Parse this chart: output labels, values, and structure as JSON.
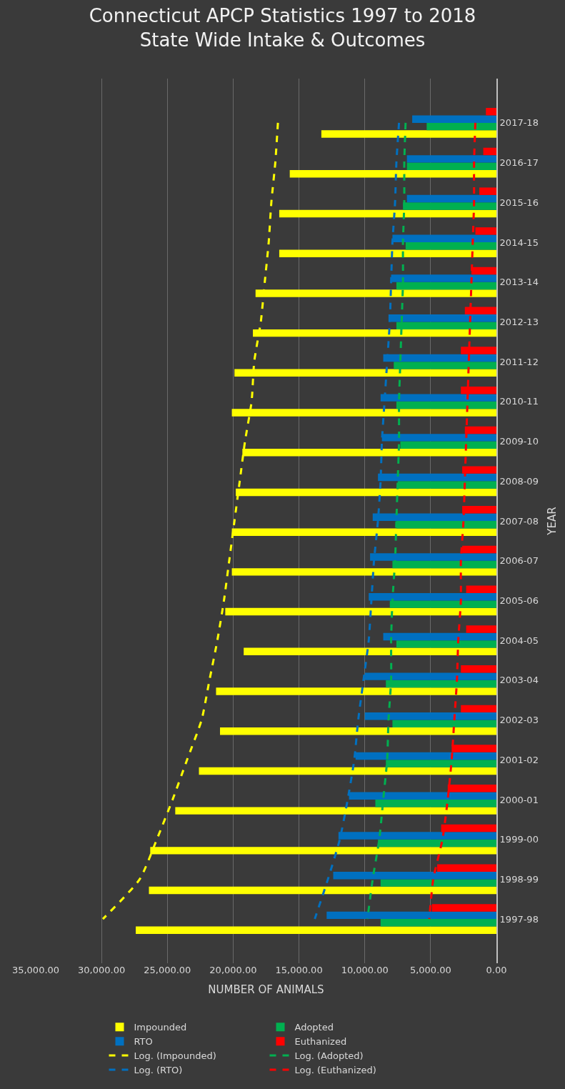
{
  "chart_data": {
    "type": "bar",
    "orientation": "horizontal",
    "title": "Connecticut APCP Statistics 1997 to 2018\nState Wide Intake & Outcomes",
    "xlabel": "NUMBER OF ANIMALS",
    "ylabel": "YEAR",
    "categories": [
      "2017-18",
      "2016-17",
      "2015-16",
      "2014-15",
      "2013-14",
      "2012-13",
      "2011-12",
      "2010-11",
      "2009-10",
      "2008-09",
      "2007-08",
      "2006-07",
      "2005-06",
      "2004-05",
      "2003-04",
      "2002-03",
      "2001-02",
      "2000-01",
      "1999-00",
      "1998-99",
      "1997-98"
    ],
    "series": [
      {
        "name": "Impounded",
        "color": "#ffff00",
        "values": [
          13300,
          15700,
          16500,
          16500,
          18300,
          18500,
          19900,
          20100,
          19300,
          19800,
          20100,
          20100,
          20600,
          19200,
          21300,
          21000,
          22600,
          24400,
          26300,
          26400,
          27400
        ]
      },
      {
        "name": "Adopted",
        "color": "#00b050",
        "values": [
          5300,
          6800,
          7100,
          6900,
          7600,
          7600,
          7800,
          7600,
          7300,
          7500,
          7600,
          7900,
          8100,
          7600,
          8400,
          7900,
          8400,
          9200,
          9000,
          8800,
          8800
        ]
      },
      {
        "name": "RTO",
        "color": "#0070c0",
        "values": [
          6400,
          6800,
          6800,
          7900,
          8000,
          8200,
          8600,
          8800,
          8700,
          9000,
          9400,
          9600,
          9700,
          8600,
          10000,
          10000,
          10700,
          11200,
          12000,
          12400,
          12900
        ]
      },
      {
        "name": "Euthanized",
        "color": "#ff0000",
        "values": [
          800,
          1000,
          1300,
          1600,
          1900,
          2400,
          2700,
          2700,
          2400,
          2600,
          2600,
          2600,
          2300,
          2300,
          2700,
          2700,
          3400,
          3700,
          4200,
          4500,
          4900
        ]
      },
      {
        "name": "Log. (Impounded)",
        "type": "line",
        "line_style": "dashed",
        "color": "#ffff00",
        "values": [
          16600,
          16800,
          17100,
          17300,
          17600,
          17900,
          18400,
          18600,
          19100,
          19500,
          19900,
          20300,
          20700,
          21200,
          21800,
          22400,
          23500,
          24600,
          25800,
          27100,
          29900
        ]
      },
      {
        "name": "Log. (Adopted)",
        "type": "line",
        "line_style": "dashed",
        "color": "#00b050",
        "values": [
          6900,
          7000,
          7000,
          7100,
          7100,
          7200,
          7300,
          7400,
          7400,
          7500,
          7600,
          7700,
          7900,
          8000,
          8000,
          8200,
          8300,
          8600,
          8900,
          9400,
          9800
        ]
      },
      {
        "name": "Log. (RTO)",
        "type": "line",
        "line_style": "dashed",
        "color": "#0070c0",
        "values": [
          7400,
          7600,
          7700,
          7900,
          8000,
          8100,
          8300,
          8500,
          8700,
          8800,
          9000,
          9300,
          9500,
          9700,
          10100,
          10500,
          10800,
          11300,
          11900,
          12800,
          13800
        ]
      },
      {
        "name": "Log. (Euthanized)",
        "type": "line",
        "line_style": "dashed",
        "color": "#ff0000",
        "values": [
          1600,
          1700,
          1700,
          1800,
          1900,
          2000,
          2100,
          2200,
          2300,
          2400,
          2500,
          2700,
          2700,
          2900,
          3000,
          3200,
          3400,
          3700,
          4100,
          4800,
          5100
        ]
      }
    ],
    "xlim": [
      35000,
      0
    ],
    "xticks": [
      {
        "value": 35000,
        "label": "35,000.00"
      },
      {
        "value": 30000,
        "label": "30,000.00"
      },
      {
        "value": 25000,
        "label": "25,000.00"
      },
      {
        "value": 20000,
        "label": "20,000.00"
      },
      {
        "value": 15000,
        "label": "15,000.00"
      },
      {
        "value": 10000,
        "label": "10,000.00"
      },
      {
        "value": 5000,
        "label": "5,000.00"
      },
      {
        "value": 0,
        "label": "0.00"
      }
    ],
    "grid": "x",
    "legend": "bottom",
    "marker": "none"
  }
}
